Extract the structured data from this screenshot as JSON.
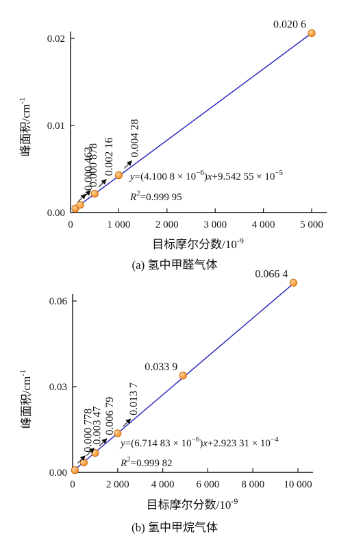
{
  "colors": {
    "line": "#2b2bbf",
    "marker": "#f08a1c",
    "marker_edge": "#c0620a",
    "axis": "#111111"
  },
  "chart_data": [
    {
      "type": "scatter",
      "caption": "(a) 氢中甲醛气体",
      "xlabel": "目标摩尔分数/10",
      "xlabel_exp": "-9",
      "ylabel": "峰面积/cm",
      "ylabel_exp": "-1",
      "xlim": [
        0,
        5000
      ],
      "ylim": [
        0,
        0.02
      ],
      "xticks": [
        0,
        1000,
        2000,
        3000,
        4000,
        5000
      ],
      "xtick_labels": [
        "0",
        "1 000",
        "2 000",
        "3 000",
        "4 000",
        "5 000"
      ],
      "yticks": [
        0,
        0.01,
        0.02
      ],
      "ytick_labels": [
        "0.00",
        "0.01",
        "0.02"
      ],
      "x": [
        100,
        200,
        500,
        1000,
        5000
      ],
      "y": [
        0.000463,
        0.000878,
        0.00216,
        0.00428,
        0.0206
      ],
      "point_labels": [
        "0.000 463",
        "0.000 878",
        "0.002 16",
        "0.004 28",
        "0.020 6"
      ],
      "fit": {
        "slope": 4.1008e-06,
        "intercept": 9.54255e-05
      },
      "equation": {
        "p1": "y",
        "p2": "=(4.100 8 × 10",
        "e1": "−6",
        "p3": ")",
        "p4": "x",
        "p5": "+9.542 55 × 10",
        "e2": "−5"
      },
      "r2": {
        "r": "R",
        "sup": "2",
        "value": "=0.999 95"
      }
    },
    {
      "type": "scatter",
      "caption": "(b) 氢中甲烷气体",
      "xlabel": "目标摩尔分数/10",
      "xlabel_exp": "-9",
      "ylabel": "峰面积/cm",
      "ylabel_exp": "-1",
      "xlim": [
        0,
        10000
      ],
      "ylim": [
        0,
        0.06
      ],
      "xticks": [
        0,
        2000,
        4000,
        6000,
        8000,
        10000
      ],
      "xtick_labels": [
        "0",
        "2 000",
        "4 000",
        "6 000",
        "8 000",
        "10 000"
      ],
      "yticks": [
        0,
        0.03,
        0.06
      ],
      "ytick_labels": [
        "0.00",
        "0.03",
        "0.06"
      ],
      "x": [
        100,
        500,
        1000,
        2000,
        4900,
        9800
      ],
      "y": [
        0.000778,
        0.00347,
        0.00679,
        0.0137,
        0.0339,
        0.0664
      ],
      "point_labels": [
        "0.000 778",
        "0.003 47",
        "0.006 79",
        "0.013 7",
        "0.033 9",
        "0.066 4"
      ],
      "fit": {
        "slope": 6.71483e-06,
        "intercept": 0.000292331
      },
      "equation": {
        "p1": "y",
        "p2": "=(6.714 83 × 10",
        "e1": "−6",
        "p3": ")",
        "p4": "x",
        "p5": "+2.923 31 × 10",
        "e2": "−4"
      },
      "r2": {
        "r": "R",
        "sup": "2",
        "value": "=0.999 82"
      }
    }
  ]
}
